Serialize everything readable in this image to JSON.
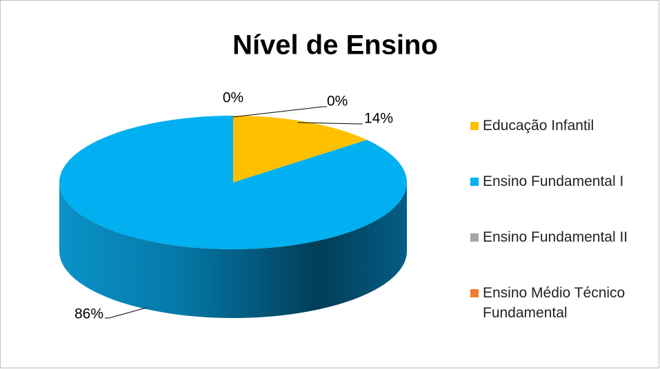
{
  "chart_data": {
    "type": "pie",
    "title": "Nível de Ensino",
    "categories": [
      "Educação Infantil",
      "Ensino Fundamental I",
      "Ensino Fundamental II",
      "Ensino Médio Técnico Fundamental"
    ],
    "values": [
      14,
      86,
      0,
      0
    ],
    "value_labels": [
      "14%",
      "86%",
      "0%",
      "0%"
    ],
    "colors": [
      "#FFC000",
      "#00B0F0",
      "#A5A5A5",
      "#ED7D31"
    ],
    "legend": "right"
  }
}
